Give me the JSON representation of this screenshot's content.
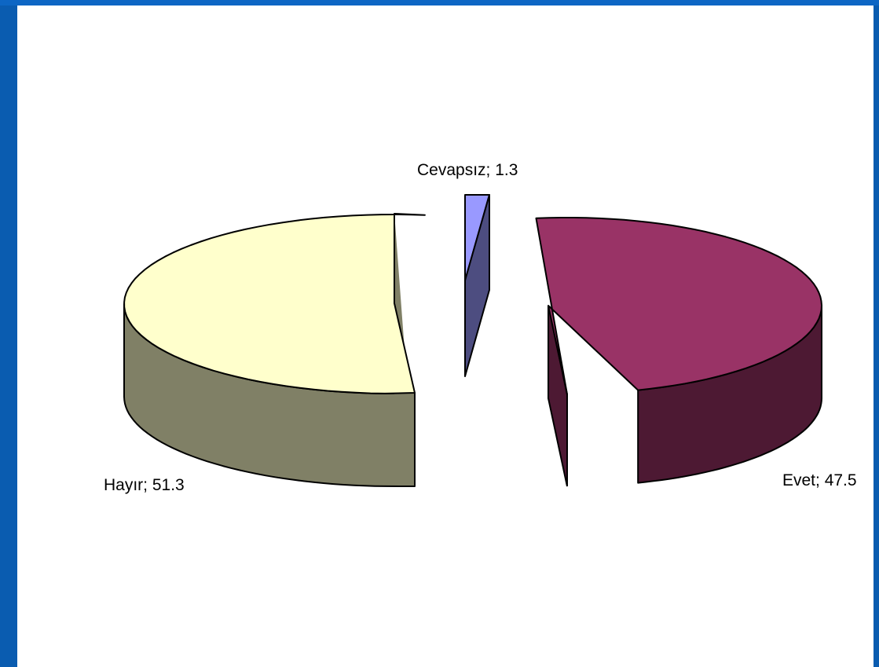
{
  "chart_data": {
    "type": "pie",
    "style": "3d-exploded",
    "slices": [
      {
        "label": "Evet; 47.5",
        "category": "Evet",
        "value": 47.5,
        "top_color": "#993366",
        "side_color": "#4d1933"
      },
      {
        "label": "Hayır; 51.3",
        "category": "Hayır",
        "value": 51.3,
        "top_color": "#ffffcc",
        "side_color": "#808066"
      },
      {
        "label": "Cevapsız; 1.3",
        "category": "Cevapsız",
        "value": 1.3,
        "top_color": "#9999ff",
        "side_color": "#4d4d80"
      }
    ],
    "legend": "none"
  },
  "colors": {
    "frame": "#0a5cb0",
    "plot_background": "#ffffff",
    "outline": "#000000"
  }
}
